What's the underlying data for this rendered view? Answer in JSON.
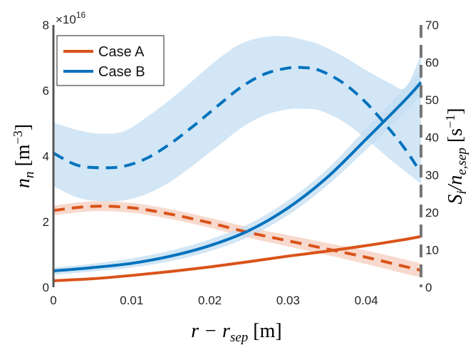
{
  "chart_data": {
    "type": "line",
    "x": {
      "label_main": "r − r",
      "label_sub": "sep",
      "label_unit": "[m]",
      "lim": [
        0,
        0.047
      ],
      "ticks": [
        0,
        0.01,
        0.02,
        0.03,
        0.04
      ],
      "tick_labels": [
        "0",
        "0.01",
        "0.02",
        "0.03",
        "0.04"
      ]
    },
    "y_left": {
      "label_main": "n",
      "label_sub": "n",
      "label_unit": "[m",
      "label_unit_sup": "−3",
      "label_unit_close": "]",
      "lim": [
        0,
        8
      ],
      "ticks": [
        0,
        2,
        4,
        6,
        8
      ],
      "tick_labels": [
        "0",
        "2",
        "4",
        "6",
        "8"
      ],
      "exponent_label": "×10",
      "exponent_sup": "16"
    },
    "y_right": {
      "label_main": "S",
      "label_main_sub": "i",
      "label_slash": "/n",
      "label_sub": "e,sep",
      "label_unit": "[s",
      "label_unit_sup": "−1",
      "label_unit_close": "]",
      "lim": [
        0,
        70
      ],
      "ticks": [
        0,
        10,
        20,
        30,
        40,
        50,
        60,
        70
      ],
      "tick_labels": [
        "0",
        "10",
        "20",
        "30",
        "40",
        "50",
        "60",
        "70"
      ]
    },
    "grid": false,
    "legend": {
      "placement": "top-left",
      "entries": [
        "Case A",
        "Case B"
      ]
    },
    "series": [
      {
        "name": "Case A",
        "axis": "left",
        "style": "solid",
        "color": "#d95319",
        "x": [
          0,
          0.005,
          0.01,
          0.015,
          0.02,
          0.025,
          0.03,
          0.035,
          0.04,
          0.045,
          0.047
        ],
        "y": [
          0.2,
          0.26,
          0.36,
          0.48,
          0.62,
          0.78,
          0.95,
          1.1,
          1.27,
          1.46,
          1.55
        ]
      },
      {
        "name": "Case A",
        "axis": "right",
        "style": "dashed",
        "color": "#d95319",
        "x": [
          0,
          0.005,
          0.01,
          0.015,
          0.02,
          0.025,
          0.03,
          0.035,
          0.04,
          0.045,
          0.047
        ],
        "y": [
          20.5,
          21.6,
          21.2,
          19.5,
          17.2,
          14.6,
          12.4,
          10.2,
          8.0,
          5.5,
          4.5
        ],
        "band": [
          [
            19.2,
            21.8
          ],
          [
            20.3,
            22.9
          ],
          [
            19.9,
            22.5
          ],
          [
            18.2,
            20.8
          ],
          [
            15.9,
            18.5
          ],
          [
            13.2,
            16.0
          ],
          [
            10.9,
            13.9
          ],
          [
            8.6,
            11.8
          ],
          [
            6.2,
            9.8
          ],
          [
            3.6,
            7.4
          ],
          [
            2.7,
            6.3
          ]
        ]
      },
      {
        "name": "Case B",
        "axis": "left",
        "style": "solid",
        "color": "#0072bd",
        "x": [
          0,
          0.005,
          0.01,
          0.015,
          0.02,
          0.025,
          0.03,
          0.035,
          0.04,
          0.045,
          0.047
        ],
        "y": [
          0.5,
          0.6,
          0.73,
          0.95,
          1.27,
          1.73,
          2.42,
          3.35,
          4.52,
          5.72,
          6.25
        ],
        "band": [
          [
            0.38,
            0.6
          ],
          [
            0.48,
            0.72
          ],
          [
            0.6,
            0.88
          ],
          [
            0.8,
            1.12
          ],
          [
            1.1,
            1.46
          ],
          [
            1.54,
            1.93
          ],
          [
            2.2,
            2.65
          ],
          [
            3.1,
            3.6
          ],
          [
            4.2,
            4.85
          ],
          [
            5.35,
            6.1
          ],
          [
            5.85,
            6.65
          ]
        ]
      },
      {
        "name": "Case B",
        "axis": "right",
        "style": "dashed",
        "color": "#0072bd",
        "x": [
          0,
          0.003,
          0.006,
          0.009,
          0.012,
          0.015,
          0.018,
          0.021,
          0.024,
          0.027,
          0.03,
          0.032,
          0.034,
          0.037,
          0.04,
          0.043,
          0.045,
          0.047
        ],
        "y": [
          35.8,
          32.6,
          31.9,
          32.3,
          34.5,
          38.4,
          43.2,
          48.4,
          53.4,
          56.9,
          58.5,
          58.6,
          57.9,
          54.6,
          49.2,
          42.1,
          36.8,
          30.5
        ],
        "band": [
          [
            27.0,
            44.0
          ],
          [
            24.0,
            42.0
          ],
          [
            23.0,
            41.0
          ],
          [
            23.2,
            41.6
          ],
          [
            25.0,
            45.5
          ],
          [
            28.2,
            50.2
          ],
          [
            32.8,
            55.5
          ],
          [
            37.6,
            60.8
          ],
          [
            42.5,
            65.0
          ],
          [
            45.9,
            66.8
          ],
          [
            47.5,
            66.9
          ],
          [
            47.6,
            66.0
          ],
          [
            47.2,
            64.8
          ],
          [
            44.3,
            61.7
          ],
          [
            39.6,
            57.9
          ],
          [
            34.2,
            54.5
          ],
          [
            30.9,
            53.3
          ],
          [
            27.6,
            62.0
          ]
        ]
      }
    ]
  }
}
